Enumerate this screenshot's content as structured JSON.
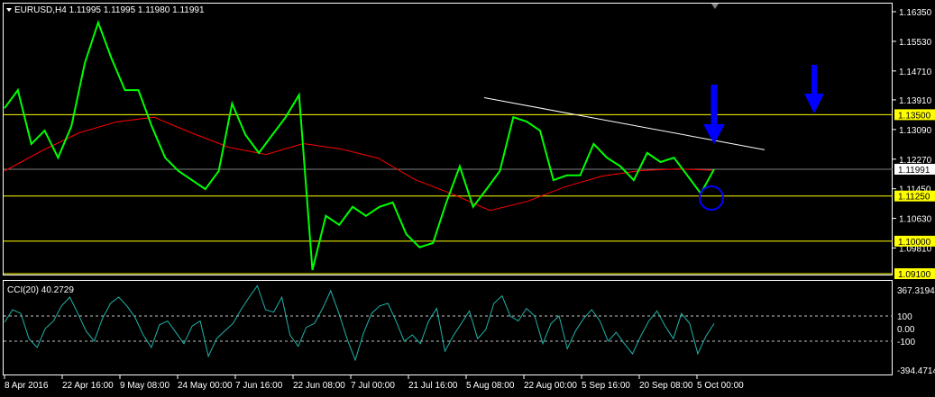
{
  "header": {
    "symbol_info": "EURUSD,H4  1.11995 1.11995 1.11980 1.11991"
  },
  "indicator": {
    "label": "CCI(20) 40.2729"
  },
  "colors": {
    "price": "#00ff00",
    "ma": "#ff0000",
    "cci": "#20b2aa",
    "levels": "#ffff00",
    "arrow": "#0000ff",
    "trendline": "#ffffff"
  },
  "chart_data": [
    {
      "type": "line",
      "title": "EURUSD,H4",
      "price_ticks": [
        "1.16350",
        "1.15530",
        "1.14710",
        "1.13910",
        "1.13090",
        "1.12270",
        "1.11450",
        "1.10630",
        "1.09810"
      ],
      "ylim": [
        1.091,
        1.1635
      ],
      "current_price": "1.11991",
      "levels": [
        "1.13500",
        "1.11250",
        "1.10000",
        "1.09100"
      ],
      "x_ticks": [
        "8 Apr 2016",
        "22 Apr 16:00",
        "9 May 08:00",
        "24 May 00:00",
        "7 Jun 16:00",
        "22 Jun 08:00",
        "7 Jul 00:00",
        "21 Jul 16:00",
        "5 Aug 08:00",
        "22 Aug 00:00",
        "5 Sep 16:00",
        "20 Sep 08:00",
        "5 Oct 00:00"
      ],
      "price": [
        1.1368,
        1.1418,
        1.1269,
        1.1306,
        1.1231,
        1.1318,
        1.1493,
        1.1605,
        1.1505,
        1.1418,
        1.1418,
        1.1318,
        1.1231,
        1.1194,
        1.1169,
        1.1144,
        1.1194,
        1.1381,
        1.1294,
        1.1244,
        1.1294,
        1.1343,
        1.1405,
        1.092,
        1.107,
        1.1045,
        1.1095,
        1.107,
        1.1095,
        1.1107,
        1.102,
        1.0983,
        1.0995,
        1.1107,
        1.1207,
        1.1095,
        1.1144,
        1.1194,
        1.1343,
        1.1331,
        1.1306,
        1.1169,
        1.1182,
        1.1182,
        1.1269,
        1.1231,
        1.1207,
        1.1169,
        1.1244,
        1.1219,
        1.1231,
        1.1182,
        1.1132,
        1.1199
      ],
      "moving_average": [
        1.1194,
        1.125,
        1.13,
        1.133,
        1.1343,
        1.13,
        1.126,
        1.124,
        1.127,
        1.1255,
        1.123,
        1.117,
        1.113,
        1.1085,
        1.111,
        1.115,
        1.118,
        1.1195,
        1.12,
        1.1196
      ],
      "trendline": [
        1.1397,
        1.1253
      ]
    },
    {
      "type": "line",
      "title": "CCI(20)",
      "ticks": [
        "367.3194",
        "100",
        "0.00",
        "-100",
        "-394.4714"
      ],
      "ylim": [
        -394.4714,
        367.3194
      ],
      "levels": [
        100,
        -100
      ],
      "values": [
        50,
        150,
        120,
        -80,
        -150,
        0,
        60,
        180,
        250,
        120,
        -20,
        -100,
        80,
        200,
        250,
        180,
        90,
        -50,
        -150,
        30,
        60,
        -30,
        -120,
        20,
        60,
        -220,
        -80,
        -20,
        40,
        150,
        250,
        340,
        150,
        130,
        250,
        -50,
        -140,
        10,
        40,
        160,
        300,
        120,
        -80,
        -250,
        -40,
        120,
        180,
        200,
        60,
        -100,
        -50,
        -120,
        60,
        160,
        -180,
        -60,
        40,
        140,
        -80,
        -10,
        200,
        260,
        100,
        60,
        160,
        100,
        -120,
        40,
        100,
        -160,
        -20,
        80,
        150,
        60,
        -100,
        -30,
        -120,
        -200,
        -60,
        60,
        140,
        20,
        -80,
        120,
        40,
        -200,
        -60,
        40
      ]
    }
  ]
}
